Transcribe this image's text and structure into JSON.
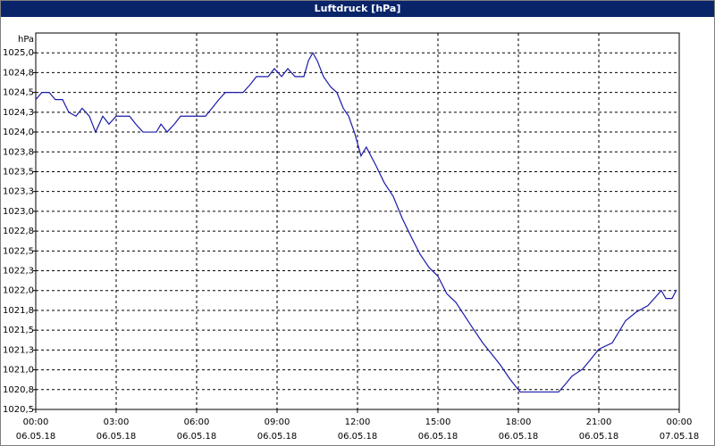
{
  "chart_data": {
    "type": "line",
    "title": "Luftdruck [hPa]",
    "y_unit": "hPa",
    "xlim": [
      0,
      24
    ],
    "ylim": [
      1020.5,
      1025.25
    ],
    "xticks": [
      {
        "value": 0,
        "label": "00:00"
      },
      {
        "value": 3,
        "label": "03:00"
      },
      {
        "value": 6,
        "label": "06:00"
      },
      {
        "value": 9,
        "label": "09:00"
      },
      {
        "value": 12,
        "label": "12:00"
      },
      {
        "value": 15,
        "label": "15:00"
      },
      {
        "value": 18,
        "label": "18:00"
      },
      {
        "value": 21,
        "label": "21:00"
      },
      {
        "value": 24,
        "label": "00:00"
      }
    ],
    "xtick_dates": [
      "06.05.18",
      "06.05.18",
      "06.05.18",
      "06.05.18",
      "06.05.18",
      "06.05.18",
      "06.05.18",
      "06.05.18",
      "07.05.18"
    ],
    "yticks": [
      {
        "value": 1020.5,
        "label": "1020,5"
      },
      {
        "value": 1020.75,
        "label": "1020,8"
      },
      {
        "value": 1021.0,
        "label": "1021,0"
      },
      {
        "value": 1021.25,
        "label": "1021,3"
      },
      {
        "value": 1021.5,
        "label": "1021,5"
      },
      {
        "value": 1021.75,
        "label": "1021,8"
      },
      {
        "value": 1022.0,
        "label": "1022,0"
      },
      {
        "value": 1022.25,
        "label": "1022,3"
      },
      {
        "value": 1022.5,
        "label": "1022,5"
      },
      {
        "value": 1022.75,
        "label": "1022,8"
      },
      {
        "value": 1023.0,
        "label": "1023,0"
      },
      {
        "value": 1023.25,
        "label": "1023,3"
      },
      {
        "value": 1023.5,
        "label": "1023,5"
      },
      {
        "value": 1023.75,
        "label": "1023,8"
      },
      {
        "value": 1024.0,
        "label": "1024,0"
      },
      {
        "value": 1024.25,
        "label": "1024,3"
      },
      {
        "value": 1024.5,
        "label": "1024,5"
      },
      {
        "value": 1024.75,
        "label": "1024,8"
      },
      {
        "value": 1025.0,
        "label": "1025,0"
      }
    ],
    "grid": true,
    "color": "#1a1aa8",
    "x": [
      0,
      0.23,
      0.5,
      0.73,
      1.0,
      1.23,
      1.5,
      1.73,
      2.0,
      2.23,
      2.5,
      2.73,
      3.0,
      3.5,
      3.73,
      4.0,
      4.5,
      4.67,
      4.9,
      5.17,
      5.4,
      6.33,
      6.57,
      6.83,
      7.07,
      7.73,
      8.0,
      8.23,
      8.67,
      8.9,
      9.17,
      9.4,
      9.67,
      10.0,
      10.17,
      10.33,
      10.5,
      10.73,
      11.0,
      11.23,
      11.47,
      11.67,
      11.9,
      12.13,
      12.33,
      12.67,
      13.0,
      13.33,
      13.67,
      14.0,
      14.33,
      14.67,
      15.0,
      15.33,
      15.67,
      16.0,
      16.33,
      16.67,
      17.0,
      17.33,
      17.67,
      17.9,
      18.07,
      19.5,
      19.73,
      20.0,
      20.4,
      20.67,
      21.0,
      21.5,
      22.0,
      22.4,
      22.83,
      23.33,
      23.5,
      23.73,
      23.9
    ],
    "values": [
      1024.41,
      1024.5,
      1024.5,
      1024.41,
      1024.41,
      1024.25,
      1024.2,
      1024.3,
      1024.2,
      1024.0,
      1024.2,
      1024.1,
      1024.2,
      1024.2,
      1024.1,
      1024.0,
      1024.0,
      1024.1,
      1024.0,
      1024.1,
      1024.2,
      1024.2,
      1024.3,
      1024.41,
      1024.5,
      1024.5,
      1024.6,
      1024.7,
      1024.7,
      1024.8,
      1024.7,
      1024.8,
      1024.7,
      1024.7,
      1024.9,
      1025.0,
      1024.9,
      1024.7,
      1024.57,
      1024.5,
      1024.3,
      1024.2,
      1023.98,
      1023.7,
      1023.81,
      1023.59,
      1023.36,
      1023.19,
      1022.91,
      1022.68,
      1022.46,
      1022.29,
      1022.18,
      1021.96,
      1021.85,
      1021.68,
      1021.51,
      1021.34,
      1021.2,
      1021.06,
      1020.89,
      1020.79,
      1020.72,
      1020.72,
      1020.81,
      1020.92,
      1021.01,
      1021.12,
      1021.26,
      1021.34,
      1021.62,
      1021.73,
      1021.81,
      1022.0,
      1021.9,
      1021.9,
      1022.01
    ]
  }
}
